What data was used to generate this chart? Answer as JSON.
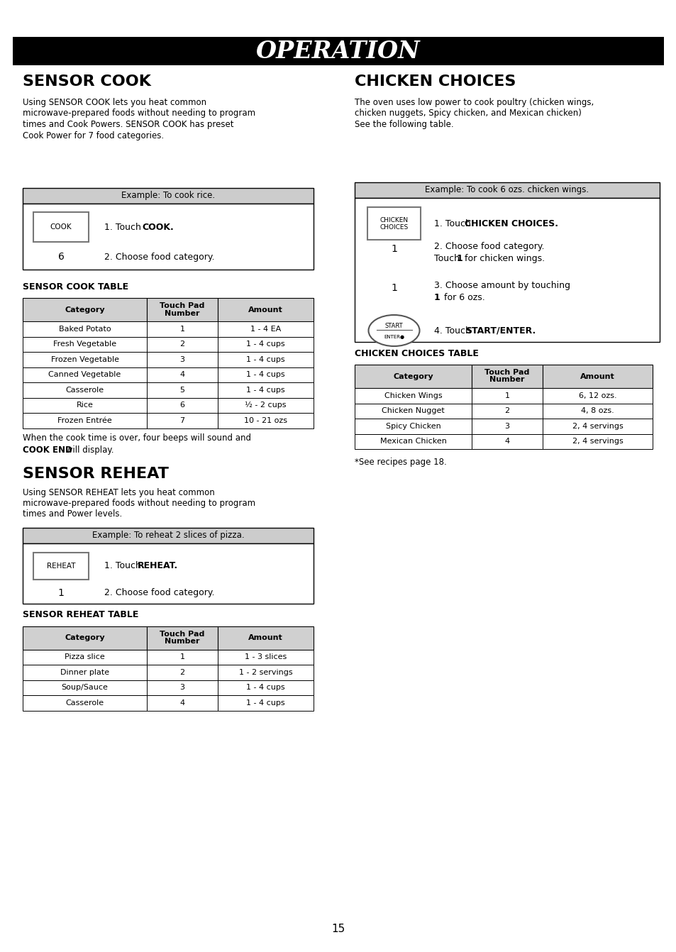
{
  "title": "OPERATION",
  "page_number": "15",
  "bg_color": "#ffffff",
  "title_bg": "#000000",
  "title_color": "#ffffff",
  "sensor_cook_title": "SENSOR COOK",
  "sensor_cook_body1": "Using SENSOR COOK lets you heat common",
  "sensor_cook_body2": "microwave-prepared foods without needing to program",
  "sensor_cook_body3": "times and Cook Powers. SENSOR COOK has preset",
  "sensor_cook_body4": "Cook Power for 7 food categories.",
  "sensor_cook_example_header": "Example: To cook rice.",
  "sensor_cook_step1a": "1. Touch ",
  "sensor_cook_step1b": "COOK.",
  "sensor_cook_step2": "2. Choose food category.",
  "sensor_cook_button": "COOK",
  "sensor_cook_number": "6",
  "sensor_cook_table_title": "SENSOR COOK TABLE",
  "sensor_cook_table_headers": [
    "Category",
    "Touch Pad\nNumber",
    "Amount"
  ],
  "sensor_cook_table_rows": [
    [
      "Baked Potato",
      "1",
      "1 - 4 EA"
    ],
    [
      "Fresh Vegetable",
      "2",
      "1 - 4 cups"
    ],
    [
      "Frozen Vegetable",
      "3",
      "1 - 4 cups"
    ],
    [
      "Canned Vegetable",
      "4",
      "1 - 4 cups"
    ],
    [
      "Casserole",
      "5",
      "1 - 4 cups"
    ],
    [
      "Rice",
      "6",
      "½ - 2 cups"
    ],
    [
      "Frozen Entrée",
      "7",
      "10 - 21 ozs"
    ]
  ],
  "sensor_cook_note1": "When the cook time is over, four beeps will sound and",
  "sensor_cook_note2a": "COOK END",
  "sensor_cook_note2b": " will display.",
  "sensor_reheat_title": "SENSOR REHEAT",
  "sensor_reheat_body1": "Using SENSOR REHEAT lets you heat common",
  "sensor_reheat_body2": "microwave-prepared foods without needing to program",
  "sensor_reheat_body3": "times and Power levels.",
  "sensor_reheat_example_header": "Example: To reheat 2 slices of pizza.",
  "sensor_reheat_step1a": "1. Touch ",
  "sensor_reheat_step1b": "REHEAT.",
  "sensor_reheat_step2": "2. Choose food category.",
  "sensor_reheat_button": "REHEAT",
  "sensor_reheat_number": "1",
  "sensor_reheat_table_title": "SENSOR REHEAT TABLE",
  "sensor_reheat_table_headers": [
    "Category",
    "Touch Pad\nNumber",
    "Amount"
  ],
  "sensor_reheat_table_rows": [
    [
      "Pizza slice",
      "1",
      "1 - 3 slices"
    ],
    [
      "Dinner plate",
      "2",
      "1 - 2 servings"
    ],
    [
      "Soup/Sauce",
      "3",
      "1 - 4 cups"
    ],
    [
      "Casserole",
      "4",
      "1 - 4 cups"
    ]
  ],
  "chicken_title": "CHICKEN CHOICES",
  "chicken_body1": "The oven uses low power to cook poultry (chicken wings,",
  "chicken_body2": "chicken nuggets, Spicy chicken, and Mexican chicken)",
  "chicken_body3": "See the following table.",
  "chicken_example_header": "Example: To cook 6 ozs. chicken wings.",
  "chicken_step1a": "1. Touch ",
  "chicken_step1b": "CHICKEN CHOICES.",
  "chicken_step2a": "2. Choose food category.",
  "chicken_step2b": "Touch ",
  "chicken_step2b_bold": "1",
  "chicken_step2c": " for chicken wings.",
  "chicken_step3a": "3. Choose amount by touching",
  "chicken_step3b": "1",
  "chicken_step3c": " for 6 ozs.",
  "chicken_step4a": "4. Touch ",
  "chicken_step4b": "START/ENTER.",
  "chicken_button_line1": "CHICKEN",
  "chicken_button_line2": "CHOICES",
  "chicken_num1": "1",
  "chicken_num2": "1",
  "chicken_table_title": "CHICKEN CHOICES TABLE",
  "chicken_table_headers": [
    "Category",
    "Touch Pad\nNumber",
    "Amount"
  ],
  "chicken_table_rows": [
    [
      "Chicken Wings",
      "1",
      "6, 12 ozs."
    ],
    [
      "Chicken Nugget",
      "2",
      "4, 8 ozs."
    ],
    [
      "Spicy Chicken",
      "3",
      "2, 4 servings"
    ],
    [
      "Mexican Chicken",
      "4",
      "2, 4 servings"
    ]
  ],
  "chicken_note": "*See recipes page 18.",
  "example_gray": "#cccccc",
  "table_header_gray": "#d0d0d0"
}
